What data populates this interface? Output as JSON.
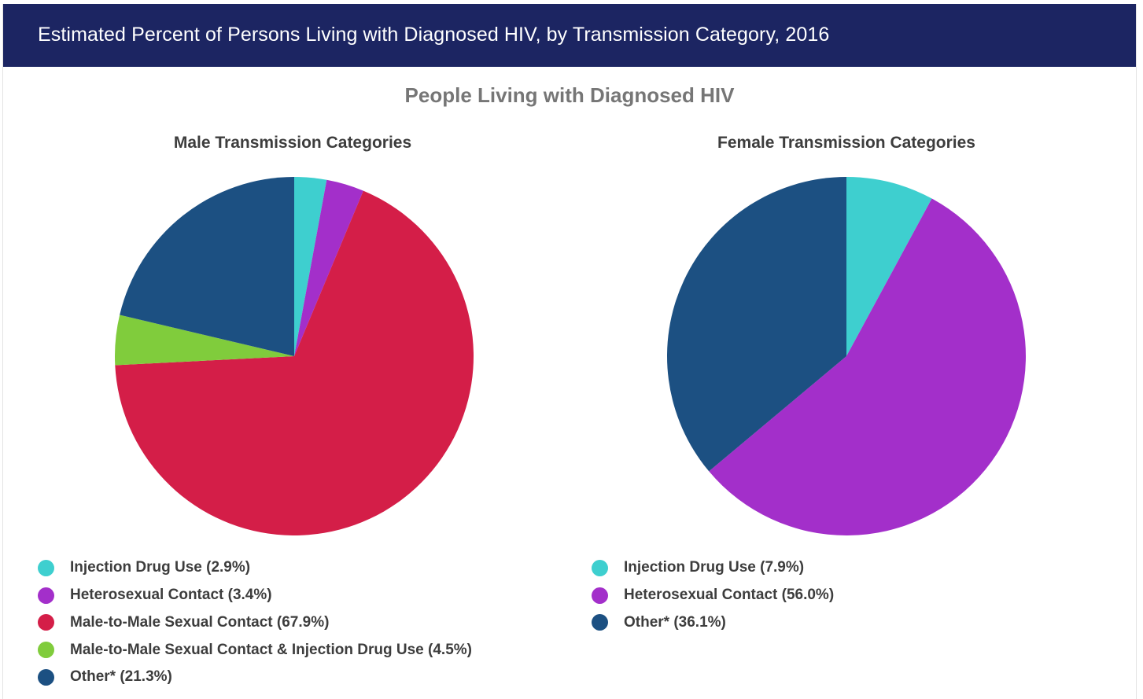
{
  "header": {
    "title": "Estimated Percent of Persons Living with Diagnosed HIV, by Transmission Category, 2016"
  },
  "main_title": "People Living with Diagnosed HIV",
  "chart_data": [
    {
      "type": "pie",
      "title": "Male Transmission Categories",
      "categories": [
        "Injection Drug Use",
        "Heterosexual Contact",
        "Male-to-Male Sexual Contact",
        "Male-to-Male Sexual Contact & Injection Drug Use",
        "Other*"
      ],
      "values": [
        2.9,
        3.4,
        67.9,
        4.5,
        21.3
      ],
      "legend_labels": [
        "Injection Drug Use (2.9%)",
        "Heterosexual Contact (3.4%)",
        "Male-to-Male Sexual Contact (67.9%)",
        "Male-to-Male Sexual Contact & Injection Drug Use (4.5%)",
        "Other* (21.3%)"
      ],
      "colors": [
        "#3ecfcf",
        "#a32fca",
        "#d41e48",
        "#80cc3c",
        "#1c5082"
      ],
      "legend_position": "bottom"
    },
    {
      "type": "pie",
      "title": "Female Transmission Categories",
      "categories": [
        "Injection Drug Use",
        "Heterosexual Contact",
        "Other*"
      ],
      "values": [
        7.9,
        56.0,
        36.1
      ],
      "legend_labels": [
        "Injection Drug Use (7.9%)",
        "Heterosexual Contact (56.0%)",
        "Other* (36.1%)"
      ],
      "colors": [
        "#3ecfcf",
        "#a32fca",
        "#1c5082"
      ],
      "legend_position": "bottom"
    }
  ]
}
